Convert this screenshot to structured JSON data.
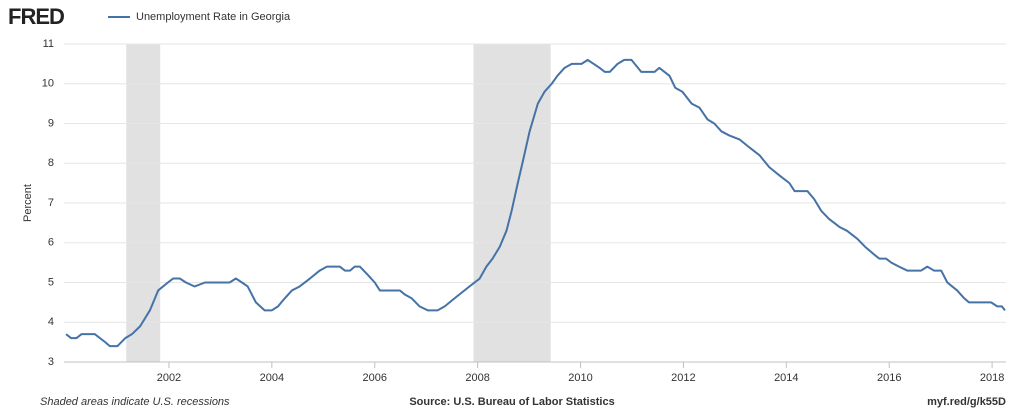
{
  "logo": "FRED",
  "chart_data": {
    "type": "line",
    "ylabel": "Percent",
    "footnote": "Shaded areas indicate U.S. recessions",
    "source": "Source: U.S. Bureau of Labor Statistics",
    "link": "myf.red/g/k55D",
    "xlim": [
      1999.96,
      2018.27
    ],
    "xticks": [
      2002,
      2004,
      2006,
      2008,
      2010,
      2012,
      2014,
      2016,
      2018
    ],
    "ylim": [
      3,
      11
    ],
    "yticks": [
      3,
      4,
      5,
      6,
      7,
      8,
      9,
      10,
      11
    ],
    "grid": true,
    "recessions": [
      [
        2001.17,
        2001.83
      ],
      [
        2007.92,
        2009.42
      ]
    ],
    "x": [
      2000.0,
      2000.1,
      2000.2,
      2000.3,
      2000.56,
      2000.76,
      2000.85,
      2001.0,
      2001.15,
      2001.28,
      2001.44,
      2001.63,
      2001.79,
      2001.98,
      2002.08,
      2002.21,
      2002.33,
      2002.5,
      2002.7,
      2003.18,
      2003.3,
      2003.42,
      2003.53,
      2003.69,
      2003.86,
      2004.0,
      2004.12,
      2004.25,
      2004.39,
      2004.54,
      2004.74,
      2004.93,
      2005.07,
      2005.32,
      2005.42,
      2005.52,
      2005.61,
      2005.71,
      2005.86,
      2006.0,
      2006.1,
      2006.49,
      2006.58,
      2006.72,
      2006.87,
      2007.03,
      2007.22,
      2007.36,
      2007.55,
      2007.84,
      2008.04,
      2008.17,
      2008.29,
      2008.43,
      2008.56,
      2008.66,
      2008.78,
      2008.87,
      2009.01,
      2009.17,
      2009.3,
      2009.44,
      2009.55,
      2009.69,
      2009.83,
      2010.02,
      2010.14,
      2010.37,
      2010.47,
      2010.57,
      2010.72,
      2010.85,
      2010.99,
      2011.18,
      2011.44,
      2011.53,
      2011.63,
      2011.73,
      2011.84,
      2011.98,
      2012.16,
      2012.31,
      2012.47,
      2012.6,
      2012.74,
      2012.89,
      2013.09,
      2013.28,
      2013.48,
      2013.67,
      2013.86,
      2014.06,
      2014.16,
      2014.41,
      2014.54,
      2014.68,
      2014.83,
      2015.03,
      2015.18,
      2015.38,
      2015.53,
      2015.71,
      2015.81,
      2015.94,
      2016.04,
      2016.19,
      2016.35,
      2016.62,
      2016.74,
      2016.87,
      2017.01,
      2017.13,
      2017.32,
      2017.46,
      2017.55,
      2017.98,
      2018.1,
      2018.19,
      2018.25
    ],
    "series": [
      {
        "name": "Unemployment Rate in Georgia",
        "color": "#4572a7",
        "values": [
          3.7,
          3.6,
          3.6,
          3.7,
          3.7,
          3.5,
          3.4,
          3.4,
          3.6,
          3.7,
          3.9,
          4.3,
          4.8,
          5.0,
          5.1,
          5.1,
          5.0,
          4.9,
          5.0,
          5.0,
          5.1,
          5.0,
          4.9,
          4.5,
          4.3,
          4.3,
          4.4,
          4.6,
          4.8,
          4.9,
          5.1,
          5.3,
          5.4,
          5.4,
          5.3,
          5.3,
          5.4,
          5.4,
          5.2,
          5.0,
          4.8,
          4.8,
          4.7,
          4.6,
          4.4,
          4.3,
          4.3,
          4.4,
          4.6,
          4.9,
          5.1,
          5.4,
          5.6,
          5.9,
          6.3,
          6.8,
          7.5,
          8.0,
          8.8,
          9.5,
          9.8,
          10.0,
          10.2,
          10.4,
          10.5,
          10.5,
          10.6,
          10.4,
          10.3,
          10.3,
          10.5,
          10.6,
          10.6,
          10.3,
          10.3,
          10.4,
          10.3,
          10.2,
          9.9,
          9.8,
          9.5,
          9.4,
          9.1,
          9.0,
          8.8,
          8.7,
          8.6,
          8.4,
          8.2,
          7.9,
          7.7,
          7.5,
          7.3,
          7.3,
          7.1,
          6.8,
          6.6,
          6.4,
          6.3,
          6.1,
          5.9,
          5.7,
          5.6,
          5.6,
          5.5,
          5.4,
          5.3,
          5.3,
          5.4,
          5.3,
          5.3,
          5.0,
          4.8,
          4.6,
          4.5,
          4.5,
          4.4,
          4.4,
          4.3
        ]
      }
    ]
  }
}
